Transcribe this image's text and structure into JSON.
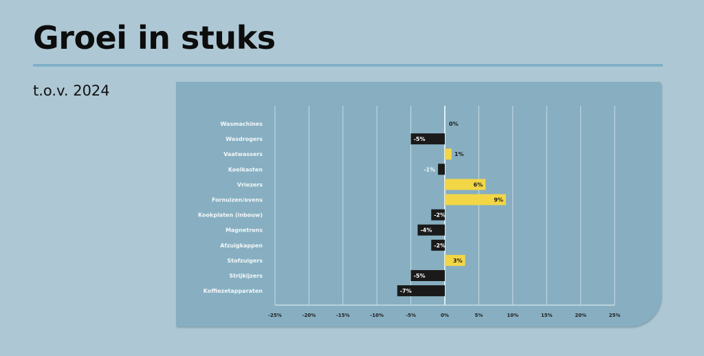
{
  "header": {
    "title": "Groei in stuks",
    "subtitle": "t.o.v. 2024"
  },
  "colors": {
    "positive": "#f2d645",
    "negative": "#1a1a1a",
    "panel": "#87afc1",
    "background": "#adc8d4",
    "grid": "#c9dde6"
  },
  "chart_data": {
    "type": "bar",
    "orientation": "horizontal",
    "title": "",
    "xlabel": "",
    "ylabel": "",
    "xlim": [
      -25,
      25
    ],
    "grid": true,
    "categories": [
      "Wasmachines",
      "Wasdrogers",
      "Vaatwassers",
      "Koelkasten",
      "Vriezers",
      "Fornuizen/ovens",
      "Kookplaten (inbouw)",
      "Magnetrons",
      "Afzuigkappen",
      "Stofzuigers",
      "Strijkijzers",
      "Koffiezetapparaten"
    ],
    "values": [
      0,
      -5,
      1,
      -1,
      6,
      9,
      -2,
      -4,
      -2,
      3,
      -5,
      -7
    ],
    "value_labels": [
      "0%",
      "-5%",
      "1%",
      "-1%",
      "6%",
      "9%",
      "-2%",
      "-4%",
      "-2%",
      "3%",
      "-5%",
      "-7%"
    ],
    "ticks": [
      -25,
      -20,
      -15,
      -10,
      -5,
      0,
      5,
      10,
      15,
      20,
      25
    ],
    "tick_labels": [
      "-25%",
      "-20%",
      "-15%",
      "-10%",
      "-5%",
      "0%",
      "5%",
      "10%",
      "15%",
      "20%",
      "25%"
    ]
  }
}
